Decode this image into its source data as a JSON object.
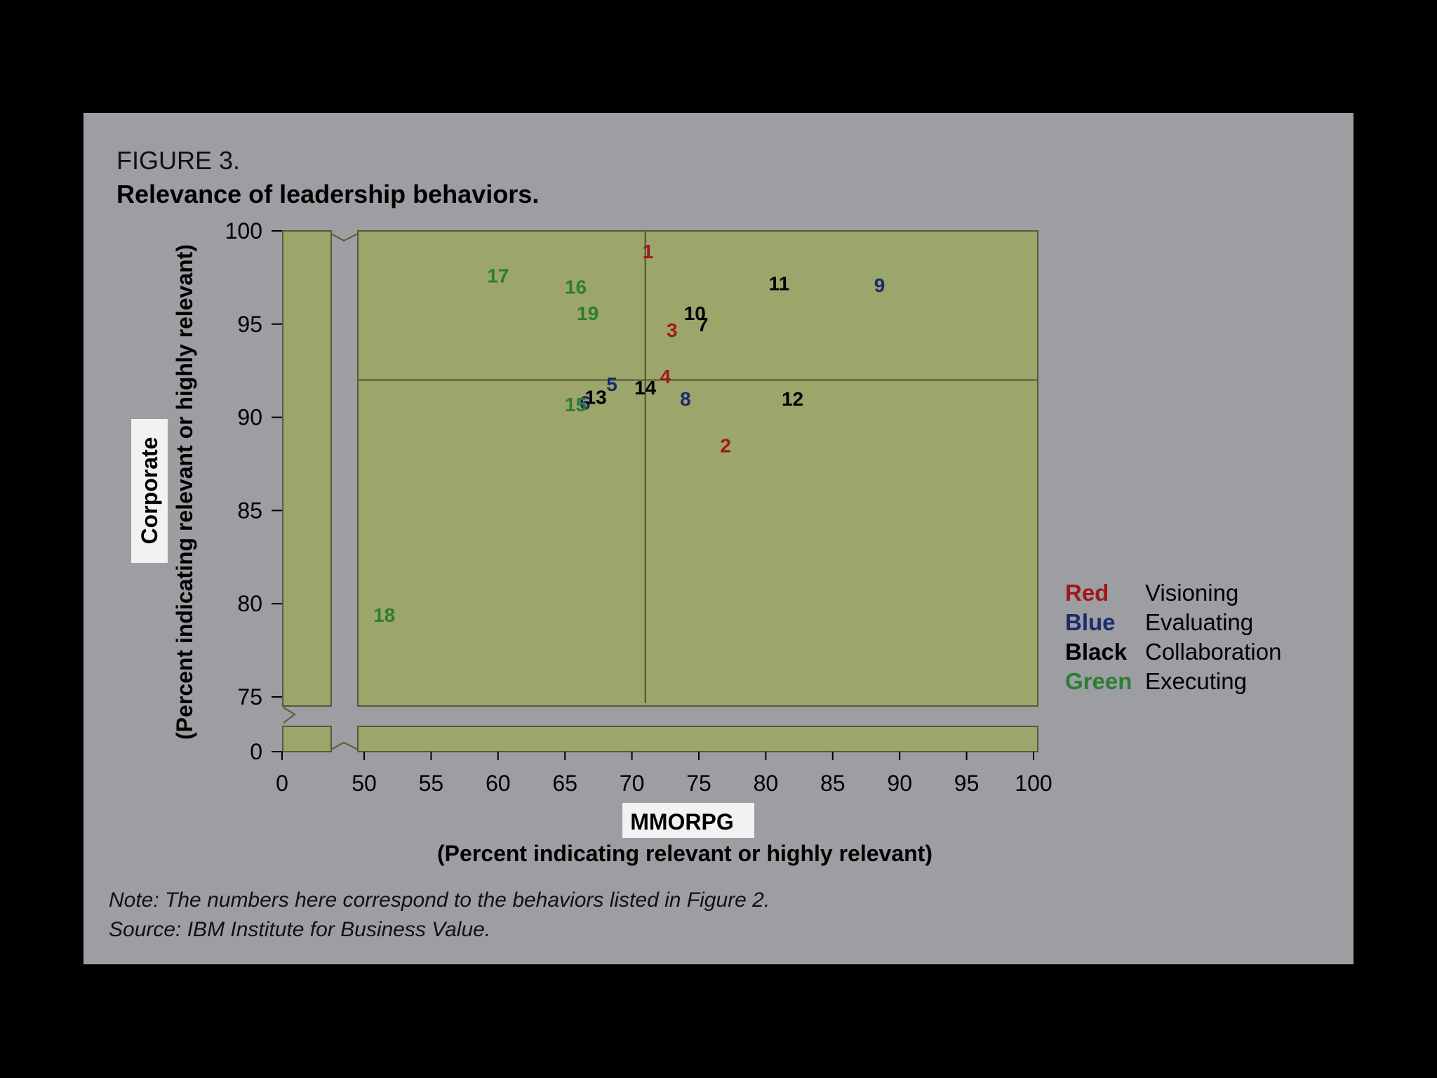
{
  "figure": {
    "label": "FIGURE 3.",
    "title": "Relevance of leadership behaviors.",
    "note": "Note: The numbers here correspond to the behaviors listed in Figure 2.",
    "source": "Source: IBM Institute for Business Value."
  },
  "colors": {
    "panel": "#9c9ea2",
    "plot_fill": "#9ca56a",
    "red": "#a0181c",
    "blue": "#1c2a6e",
    "black": "#000000",
    "green": "#2e7d32"
  },
  "legend": [
    {
      "color_word": "Red",
      "category": "Visioning",
      "color": "#a0181c"
    },
    {
      "color_word": "Blue",
      "category": "Evaluating",
      "color": "#1c2a6e"
    },
    {
      "color_word": "Black",
      "category": "Collaboration",
      "color": "#000000"
    },
    {
      "color_word": "Green",
      "category": "Executing",
      "color": "#2e7d32"
    }
  ],
  "chart_data": {
    "type": "scatter",
    "xlabel_main": "MMORPG",
    "xlabel_sub": "(Percent indicating relevant or highly relevant)",
    "ylabel_main": "Corporate",
    "ylabel_sub": "(Percent indicating relevant or highly relevant)",
    "xlim": [
      50,
      100
    ],
    "ylim": [
      75,
      100
    ],
    "x_axis_break": true,
    "y_axis_break": true,
    "x_ticks": [
      "0",
      "50",
      "55",
      "60",
      "65",
      "70",
      "75",
      "80",
      "85",
      "90",
      "95",
      "100"
    ],
    "y_ticks": [
      "100",
      "95",
      "90",
      "85",
      "80",
      "75",
      "0"
    ],
    "reference_lines": {
      "x": 71,
      "y": 92
    },
    "points": [
      {
        "label": "1",
        "x": 71.2,
        "y": 98.9,
        "group": "Visioning"
      },
      {
        "label": "2",
        "x": 77,
        "y": 88.5,
        "group": "Visioning"
      },
      {
        "label": "3",
        "x": 73,
        "y": 94.7,
        "group": "Visioning"
      },
      {
        "label": "4",
        "x": 72.5,
        "y": 92.2,
        "group": "Visioning"
      },
      {
        "label": "5",
        "x": 68.5,
        "y": 91.8,
        "group": "Evaluating"
      },
      {
        "label": "6",
        "x": 66.5,
        "y": 90.8,
        "group": "Evaluating"
      },
      {
        "label": "7",
        "x": 75.3,
        "y": 95,
        "group": "Collaboration"
      },
      {
        "label": "8",
        "x": 74,
        "y": 91,
        "group": "Evaluating"
      },
      {
        "label": "9",
        "x": 88.5,
        "y": 97.1,
        "group": "Evaluating"
      },
      {
        "label": "10",
        "x": 74.7,
        "y": 95.6,
        "group": "Collaboration"
      },
      {
        "label": "11",
        "x": 81,
        "y": 97.2,
        "group": "Collaboration"
      },
      {
        "label": "12",
        "x": 82,
        "y": 91,
        "group": "Collaboration"
      },
      {
        "label": "13",
        "x": 67.3,
        "y": 91.1,
        "group": "Collaboration"
      },
      {
        "label": "14",
        "x": 71,
        "y": 91.6,
        "group": "Collaboration"
      },
      {
        "label": "15",
        "x": 65.8,
        "y": 90.7,
        "group": "Executing"
      },
      {
        "label": "16",
        "x": 65.8,
        "y": 97,
        "group": "Executing"
      },
      {
        "label": "17",
        "x": 60,
        "y": 97.6,
        "group": "Executing"
      },
      {
        "label": "18",
        "x": 51.5,
        "y": 79.4,
        "group": "Executing"
      },
      {
        "label": "19",
        "x": 66.7,
        "y": 95.6,
        "group": "Executing"
      }
    ]
  }
}
